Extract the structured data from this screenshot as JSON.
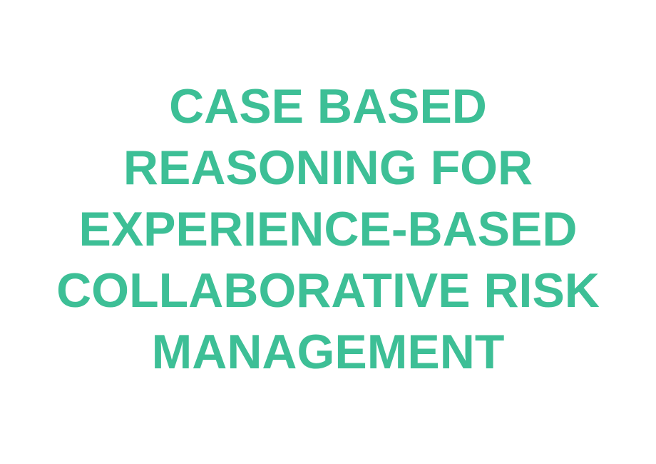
{
  "slide": {
    "title_lines": [
      "CASE BASED",
      "REASONING FOR",
      "EXPERIENCE-BASED",
      "COLLABORATIVE RISK",
      "MANAGEMENT"
    ]
  },
  "colors": {
    "title": "#3dbf96",
    "background": "#ffffff"
  }
}
